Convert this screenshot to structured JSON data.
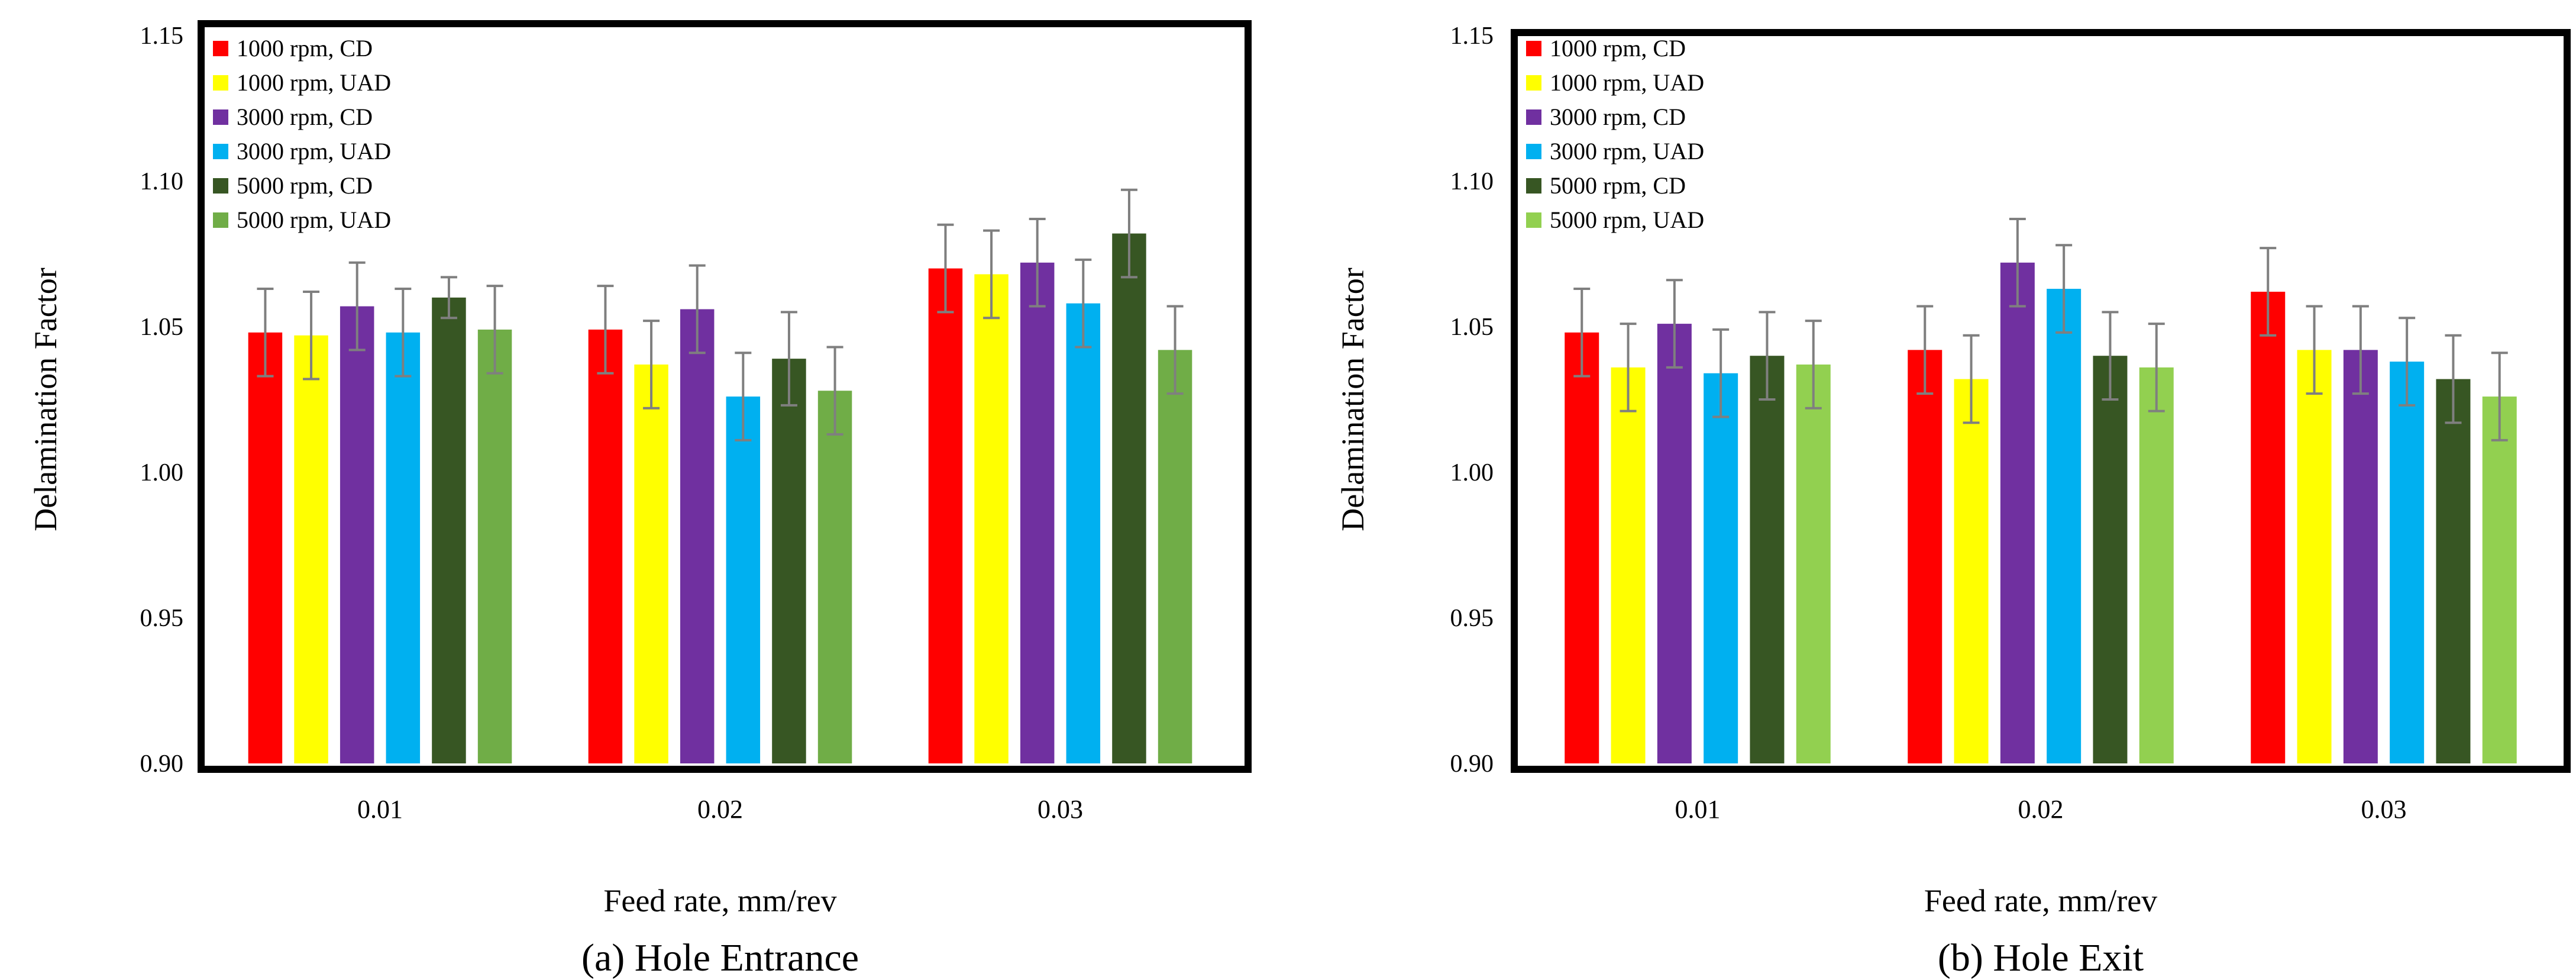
{
  "figure": {
    "captions": [
      "(a) Hole Entrance",
      "(b) Hole Exit"
    ]
  },
  "chart_data": [
    {
      "type": "bar",
      "title": "(a) Hole Entrance",
      "xlabel": "Feed rate, mm/rev",
      "ylabel": "Delamination Factor",
      "ylim": [
        0.9,
        1.15
      ],
      "yticks": [
        "0.90",
        "0.95",
        "1.00",
        "1.05",
        "1.10",
        "1.15"
      ],
      "grid": false,
      "legend_position": "top-left",
      "categories": [
        "0.01",
        "0.02",
        "0.03"
      ],
      "series": [
        {
          "name": "1000 rpm, CD",
          "color": "#ff0000",
          "values": [
            1.048,
            1.049,
            1.07
          ],
          "errors": [
            0.015,
            0.015,
            0.015
          ]
        },
        {
          "name": "1000 rpm, UAD",
          "color": "#ffff00",
          "values": [
            1.047,
            1.037,
            1.068
          ],
          "errors": [
            0.015,
            0.015,
            0.015
          ]
        },
        {
          "name": "3000 rpm, CD",
          "color": "#7030a0",
          "values": [
            1.057,
            1.056,
            1.072
          ],
          "errors": [
            0.015,
            0.015,
            0.015
          ]
        },
        {
          "name": "3000 rpm, UAD",
          "color": "#00b0f0",
          "values": [
            1.048,
            1.026,
            1.058
          ],
          "errors": [
            0.015,
            0.015,
            0.015
          ]
        },
        {
          "name": "5000 rpm, CD",
          "color": "#375623",
          "values": [
            1.06,
            1.039,
            1.082
          ],
          "errors": [
            0.007,
            0.016,
            0.015
          ]
        },
        {
          "name": "5000 rpm, UAD",
          "color": "#70ad47",
          "values": [
            1.049,
            1.028,
            1.042
          ],
          "errors": [
            0.015,
            0.015,
            0.015
          ]
        }
      ]
    },
    {
      "type": "bar",
      "title": "(b) Hole Exit",
      "xlabel": "Feed rate, mm/rev",
      "ylabel": "Delamination Factor",
      "ylim": [
        0.9,
        1.15
      ],
      "yticks": [
        "0.90",
        "0.95",
        "1.00",
        "1.05",
        "1.10",
        "1.15"
      ],
      "grid": false,
      "legend_position": "top-left",
      "categories": [
        "0.01",
        "0.02",
        "0.03"
      ],
      "series": [
        {
          "name": "1000 rpm, CD",
          "color": "#ff0000",
          "values": [
            1.048,
            1.042,
            1.062
          ],
          "errors": [
            0.015,
            0.015,
            0.015
          ]
        },
        {
          "name": "1000 rpm, UAD",
          "color": "#ffff00",
          "values": [
            1.036,
            1.032,
            1.042
          ],
          "errors": [
            0.015,
            0.015,
            0.015
          ]
        },
        {
          "name": "3000 rpm, CD",
          "color": "#7030a0",
          "values": [
            1.051,
            1.072,
            1.042
          ],
          "errors": [
            0.015,
            0.015,
            0.015
          ]
        },
        {
          "name": "3000 rpm, UAD",
          "color": "#00b0f0",
          "values": [
            1.034,
            1.063,
            1.038
          ],
          "errors": [
            0.015,
            0.015,
            0.015
          ]
        },
        {
          "name": "5000 rpm, CD",
          "color": "#375623",
          "values": [
            1.04,
            1.04,
            1.032
          ],
          "errors": [
            0.015,
            0.015,
            0.015
          ]
        },
        {
          "name": "5000 rpm, UAD",
          "color": "#92d050",
          "values": [
            1.037,
            1.036,
            1.026
          ],
          "errors": [
            0.015,
            0.015,
            0.015
          ]
        }
      ]
    }
  ]
}
